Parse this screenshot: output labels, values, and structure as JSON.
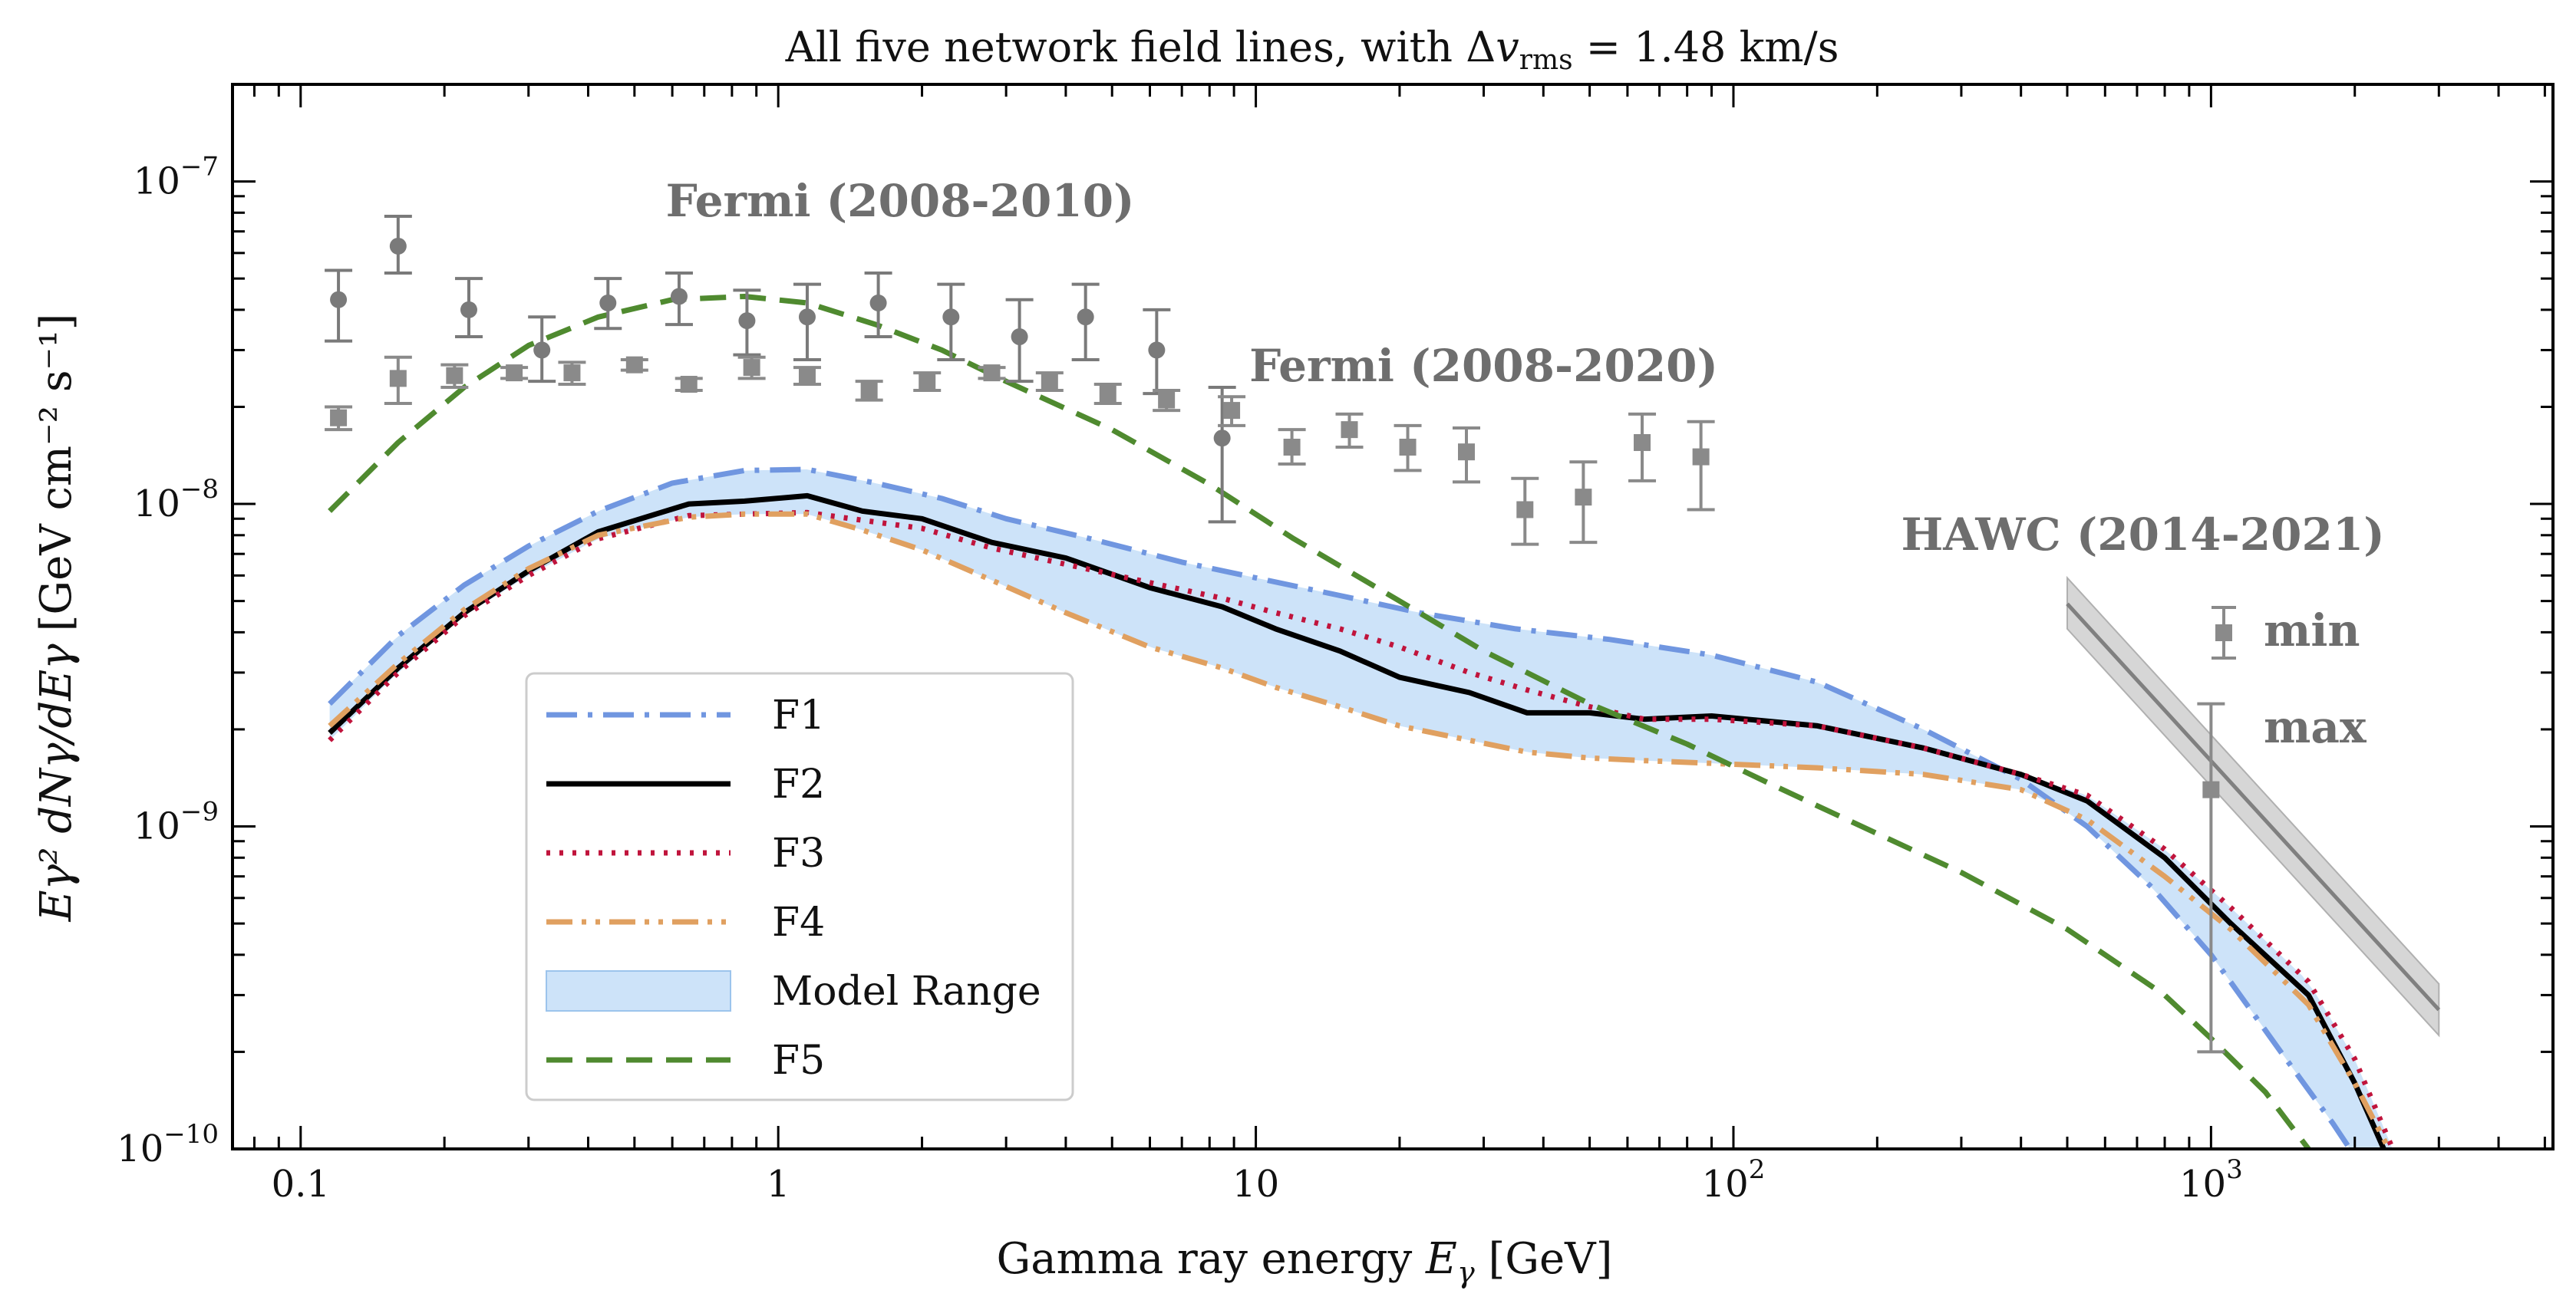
{
  "chart_data": {
    "type": "line",
    "title": "All five network field lines, with Δv_rms = 1.48 km/s",
    "title_parts": {
      "prefix": "All five network field lines, with Δ",
      "v": "v",
      "sub": "rms",
      "suffix": " = 1.48 km/s"
    },
    "xlabel": "Gamma ray energy E_γ [GeV]",
    "xlabel_parts": {
      "prefix": "Gamma ray energy ",
      "E": "E",
      "sub": "γ",
      "suffix": " [GeV]"
    },
    "ylabel": "E_γ² dN_γ/dE_γ [GeV cm⁻² s⁻¹]",
    "ylabel_parts": {
      "main": "Eγ² dNγ/dEγ",
      "units": "[GeV cm⁻² s⁻¹]"
    },
    "x_scale": "log",
    "y_scale": "log",
    "xlim": [
      0.072,
      5200
    ],
    "ylim": [
      1e-10,
      2e-07
    ],
    "x_tick_labels": [
      {
        "x": 0.1,
        "label": "0.1"
      },
      {
        "x": 1,
        "label": "1"
      },
      {
        "x": 10,
        "label": "10"
      },
      {
        "x": 100,
        "base": "10",
        "exp": "2"
      },
      {
        "x": 1000,
        "base": "10",
        "exp": "3"
      }
    ],
    "y_tick_labels": [
      {
        "y": 1e-10,
        "base": "10",
        "exp": "−10"
      },
      {
        "y": 1e-09,
        "base": "10",
        "exp": "−9"
      },
      {
        "y": 1e-08,
        "base": "10",
        "exp": "−8"
      },
      {
        "y": 1e-07,
        "base": "10",
        "exp": "−7"
      }
    ],
    "legend_position": "lower-left",
    "series": [
      {
        "name": "F1",
        "color": "#7096e0",
        "dash": "dashdot",
        "x": [
          0.115,
          0.16,
          0.22,
          0.3,
          0.42,
          0.6,
          0.85,
          1.15,
          1.6,
          2.2,
          3.0,
          4.5,
          7,
          10,
          15,
          22,
          35,
          55,
          90,
          150,
          250,
          400,
          550,
          750,
          1000,
          1400,
          1800,
          2000
        ],
        "y": [
          2.4e-09,
          3.9e-09,
          5.6e-09,
          7.4e-09,
          9.5e-09,
          1.16e-08,
          1.27e-08,
          1.28e-08,
          1.16e-08,
          1.04e-08,
          9e-09,
          7.8e-09,
          6.6e-09,
          5.9e-09,
          5.2e-09,
          4.6e-09,
          4.1e-09,
          3.8e-09,
          3.4e-09,
          2.8e-09,
          2e-09,
          1.4e-09,
          1e-09,
          6.5e-10,
          4e-10,
          2e-10,
          1.2e-10,
          9.5e-11
        ]
      },
      {
        "name": "F2",
        "color": "#000000",
        "dash": "solid",
        "x": [
          0.115,
          0.16,
          0.22,
          0.3,
          0.42,
          0.65,
          0.85,
          1.15,
          1.5,
          2.0,
          2.8,
          4.0,
          6.0,
          8.5,
          11,
          15,
          20,
          28,
          37,
          50,
          65,
          90,
          150,
          250,
          400,
          550,
          800,
          1100,
          1600,
          2000,
          2300
        ],
        "y": [
          1.95e-09,
          3.1e-09,
          4.6e-09,
          6.2e-09,
          8.2e-09,
          1e-08,
          1.02e-08,
          1.06e-08,
          9.5e-09,
          9e-09,
          7.6e-09,
          6.8e-09,
          5.5e-09,
          4.8e-09,
          4.1e-09,
          3.5e-09,
          2.9e-09,
          2.6e-09,
          2.25e-09,
          2.25e-09,
          2.15e-09,
          2.2e-09,
          2.05e-09,
          1.75e-09,
          1.45e-09,
          1.2e-09,
          8e-10,
          5e-10,
          3e-10,
          1.6e-10,
          1e-10
        ]
      },
      {
        "name": "F3",
        "color": "#c0143c",
        "dash": "dotted",
        "x": [
          0.115,
          0.16,
          0.22,
          0.3,
          0.42,
          0.65,
          0.85,
          1.15,
          1.5,
          2.0,
          2.8,
          4.0,
          6.0,
          8.5,
          11,
          15,
          20,
          28,
          37,
          50,
          65,
          90,
          150,
          250,
          400,
          550,
          800,
          1100,
          1600,
          2000,
          2400
        ],
        "y": [
          1.85e-09,
          3e-09,
          4.5e-09,
          6e-09,
          7.8e-09,
          9.2e-09,
          9.3e-09,
          9.4e-09,
          8.9e-09,
          8.4e-09,
          7.3e-09,
          6.5e-09,
          5.7e-09,
          5.1e-09,
          4.6e-09,
          4.1e-09,
          3.6e-09,
          3e-09,
          2.65e-09,
          2.35e-09,
          2.15e-09,
          2.15e-09,
          2.05e-09,
          1.75e-09,
          1.45e-09,
          1.25e-09,
          8.5e-10,
          5.6e-10,
          3.3e-10,
          1.9e-10,
          1e-10
        ]
      },
      {
        "name": "F4",
        "color": "#e0a060",
        "dash": "dashdotdot",
        "x": [
          0.115,
          0.16,
          0.22,
          0.3,
          0.42,
          0.65,
          0.85,
          1.15,
          1.5,
          2.0,
          2.8,
          4.0,
          6.0,
          8.5,
          11,
          15,
          20,
          28,
          37,
          50,
          65,
          90,
          150,
          250,
          400,
          550,
          800,
          1100,
          1600,
          2000,
          2400
        ],
        "y": [
          2.05e-09,
          3.2e-09,
          4.7e-09,
          6.3e-09,
          8e-09,
          9.1e-09,
          9.3e-09,
          9.3e-09,
          8.3e-09,
          7.2e-09,
          5.8e-09,
          4.6e-09,
          3.6e-09,
          3.1e-09,
          2.7e-09,
          2.35e-09,
          2.05e-09,
          1.85e-09,
          1.7e-09,
          1.63e-09,
          1.6e-09,
          1.57e-09,
          1.52e-09,
          1.45e-09,
          1.3e-09,
          1.05e-09,
          7e-10,
          4.8e-10,
          2.8e-10,
          1.6e-10,
          9.5e-11
        ]
      },
      {
        "name": "F5",
        "color": "#4f8a2f",
        "dash": "dashed",
        "x": [
          0.115,
          0.16,
          0.22,
          0.3,
          0.42,
          0.6,
          0.85,
          1.15,
          1.6,
          2.2,
          3.0,
          5.0,
          8.0,
          12,
          20,
          30,
          50,
          80,
          120,
          200,
          300,
          500,
          800,
          1000,
          1300,
          1600
        ],
        "y": [
          9.5e-09,
          1.55e-08,
          2.3e-08,
          3.1e-08,
          3.8e-08,
          4.3e-08,
          4.4e-08,
          4.2e-08,
          3.6e-08,
          3e-08,
          2.4e-08,
          1.7e-08,
          1.15e-08,
          7.8e-09,
          5e-09,
          3.5e-09,
          2.4e-09,
          1.8e-09,
          1.35e-09,
          9.5e-10,
          7.2e-10,
          4.8e-10,
          3e-10,
          2.2e-10,
          1.5e-10,
          1e-10
        ]
      }
    ],
    "model_range": {
      "name": "Model Range",
      "color": "#bcdaf7"
    },
    "observations": [
      {
        "name": "Fermi (2008-2010)",
        "marker": "circle",
        "color": "#7a7a7a",
        "x": [
          0.12,
          0.16,
          0.225,
          0.32,
          0.44,
          0.62,
          0.86,
          1.15,
          1.62,
          2.3,
          3.2,
          4.4,
          6.2,
          8.5
        ],
        "y": [
          4.3e-08,
          6.3e-08,
          4e-08,
          3e-08,
          4.2e-08,
          4.4e-08,
          3.7e-08,
          3.8e-08,
          4.2e-08,
          3.8e-08,
          3.3e-08,
          3.8e-08,
          3e-08,
          1.6e-08
        ],
        "y_lo": [
          3.2e-08,
          5.2e-08,
          3.3e-08,
          2.4e-08,
          3.5e-08,
          3.6e-08,
          2.9e-08,
          2.8e-08,
          3.3e-08,
          2.8e-08,
          2.4e-08,
          2.8e-08,
          2.2e-08,
          8.8e-09
        ],
        "y_hi": [
          5.3e-08,
          7.8e-08,
          5e-08,
          3.8e-08,
          5e-08,
          5.2e-08,
          4.6e-08,
          4.8e-08,
          5.2e-08,
          4.8e-08,
          4.3e-08,
          4.8e-08,
          4e-08,
          2.3e-08
        ]
      },
      {
        "name": "Fermi (2008-2020)",
        "marker": "square",
        "color": "#8a8a8a",
        "x": [
          0.12,
          0.16,
          0.21,
          0.28,
          0.37,
          0.5,
          0.65,
          0.88,
          1.15,
          1.55,
          2.05,
          2.8,
          3.7,
          4.9,
          6.5,
          8.9,
          11.9,
          15.7,
          20.8,
          27.6,
          36.6,
          48.5,
          64.4,
          85.5
        ],
        "y": [
          1.85e-08,
          2.45e-08,
          2.5e-08,
          2.55e-08,
          2.55e-08,
          2.7e-08,
          2.35e-08,
          2.65e-08,
          2.5e-08,
          2.25e-08,
          2.4e-08,
          2.55e-08,
          2.4e-08,
          2.2e-08,
          2.1e-08,
          1.95e-08,
          1.5e-08,
          1.7e-08,
          1.5e-08,
          1.45e-08,
          9.6e-09,
          1.05e-08,
          1.55e-08,
          1.4e-08
        ],
        "y_lo": [
          1.7e-08,
          2.05e-08,
          2.3e-08,
          2.45e-08,
          2.35e-08,
          2.6e-08,
          2.25e-08,
          2.45e-08,
          2.35e-08,
          2.1e-08,
          2.25e-08,
          2.45e-08,
          2.25e-08,
          2.05e-08,
          1.95e-08,
          1.75e-08,
          1.33e-08,
          1.5e-08,
          1.27e-08,
          1.17e-08,
          7.5e-09,
          7.6e-09,
          1.18e-08,
          9.6e-09
        ],
        "y_hi": [
          2e-08,
          2.85e-08,
          2.7e-08,
          2.65e-08,
          2.75e-08,
          2.8e-08,
          2.45e-08,
          2.85e-08,
          2.65e-08,
          2.4e-08,
          2.55e-08,
          2.65e-08,
          2.55e-08,
          2.35e-08,
          2.25e-08,
          2.15e-08,
          1.7e-08,
          1.9e-08,
          1.75e-08,
          1.72e-08,
          1.2e-08,
          1.35e-08,
          1.9e-08,
          1.8e-08
        ]
      },
      {
        "name": "HAWC (2014-2021)",
        "marker": "square",
        "color": "#8a8a8a",
        "x": [
          1000
        ],
        "y": [
          1.3e-09
        ],
        "y_lo": [
          2e-10
        ],
        "y_hi": [
          2.4e-09
        ]
      }
    ],
    "hawc_band": {
      "x": [
        500,
        3000
      ],
      "y_center": [
        4.9e-09,
        2.7e-10
      ],
      "y_lo": [
        4.1e-09,
        2.25e-10
      ],
      "y_hi": [
        5.9e-09,
        3.25e-10
      ],
      "line_color": "#808080",
      "fill_color": "#d6d6d6"
    },
    "hawc_legend": {
      "min_label": "min",
      "max_label": "max"
    },
    "annotations": [
      {
        "text": "Fermi (2008-2010)",
        "x": 1.8,
        "y": 7.8e-08
      },
      {
        "text": "Fermi (2008-2020)",
        "x": 30,
        "y": 2.4e-08
      },
      {
        "text": "HAWC (2014-2021)",
        "x": 720,
        "y": 7.2e-09
      }
    ]
  }
}
